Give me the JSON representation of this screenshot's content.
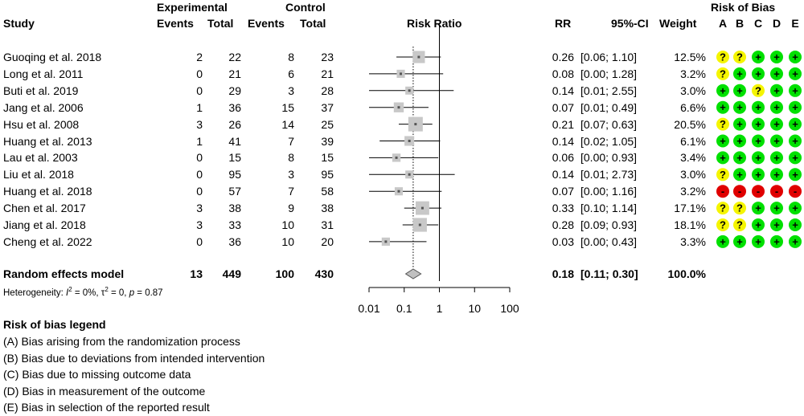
{
  "headers": {
    "experimental": "Experimental",
    "control": "Control",
    "study": "Study",
    "events": "Events",
    "total": "Total",
    "risk_ratio": "Risk Ratio",
    "rr": "RR",
    "ci": "95%-CI",
    "weight": "Weight",
    "risk_of_bias": "Risk of Bias",
    "rob_cols": [
      "A",
      "B",
      "C",
      "D",
      "E"
    ]
  },
  "studies": [
    {
      "study": "Guoqing et al. 2018",
      "exp_events": "2",
      "exp_total": "22",
      "ctrl_events": "8",
      "ctrl_total": "23",
      "rr": "0.26",
      "ci": "[0.06; 1.10]",
      "weight": "12.5%",
      "rob": [
        "?",
        "?",
        "+",
        "+",
        "+"
      ]
    },
    {
      "study": "Long et al. 2011",
      "exp_events": "0",
      "exp_total": "21",
      "ctrl_events": "6",
      "ctrl_total": "21",
      "rr": "0.08",
      "ci": "[0.00; 1.28]",
      "weight": "3.2%",
      "rob": [
        "?",
        "+",
        "+",
        "+",
        "+"
      ]
    },
    {
      "study": "Buti et al. 2019",
      "exp_events": "0",
      "exp_total": "29",
      "ctrl_events": "3",
      "ctrl_total": "28",
      "rr": "0.14",
      "ci": "[0.01; 2.55]",
      "weight": "3.0%",
      "rob": [
        "+",
        "+",
        "?",
        "+",
        "+"
      ]
    },
    {
      "study": "Jang et al. 2006",
      "exp_events": "1",
      "exp_total": "36",
      "ctrl_events": "15",
      "ctrl_total": "37",
      "rr": "0.07",
      "ci": "[0.01; 0.49]",
      "weight": "6.6%",
      "rob": [
        "+",
        "+",
        "+",
        "+",
        "+"
      ]
    },
    {
      "study": "Hsu et al. 2008",
      "exp_events": "3",
      "exp_total": "26",
      "ctrl_events": "14",
      "ctrl_total": "25",
      "rr": "0.21",
      "ci": "[0.07; 0.63]",
      "weight": "20.5%",
      "rob": [
        "?",
        "+",
        "+",
        "+",
        "+"
      ]
    },
    {
      "study": "Huang et al. 2013",
      "exp_events": "1",
      "exp_total": "41",
      "ctrl_events": "7",
      "ctrl_total": "39",
      "rr": "0.14",
      "ci": "[0.02; 1.05]",
      "weight": "6.1%",
      "rob": [
        "+",
        "+",
        "+",
        "+",
        "+"
      ]
    },
    {
      "study": "Lau et al. 2003",
      "exp_events": "0",
      "exp_total": "15",
      "ctrl_events": "8",
      "ctrl_total": "15",
      "rr": "0.06",
      "ci": "[0.00; 0.93]",
      "weight": "3.4%",
      "rob": [
        "+",
        "+",
        "+",
        "+",
        "+"
      ]
    },
    {
      "study": "Liu et al. 2018",
      "exp_events": "0",
      "exp_total": "95",
      "ctrl_events": "3",
      "ctrl_total": "95",
      "rr": "0.14",
      "ci": "[0.01; 2.73]",
      "weight": "3.0%",
      "rob": [
        "?",
        "+",
        "+",
        "+",
        "+"
      ]
    },
    {
      "study": "Huang et al. 2018",
      "exp_events": "0",
      "exp_total": "57",
      "ctrl_events": "7",
      "ctrl_total": "58",
      "rr": "0.07",
      "ci": "[0.00; 1.16]",
      "weight": "3.2%",
      "rob": [
        "-",
        "-",
        "-",
        "-",
        "-"
      ]
    },
    {
      "study": "Chen et al. 2017",
      "exp_events": "3",
      "exp_total": "38",
      "ctrl_events": "9",
      "ctrl_total": "38",
      "rr": "0.33",
      "ci": "[0.10; 1.14]",
      "weight": "17.1%",
      "rob": [
        "?",
        "?",
        "+",
        "+",
        "+"
      ]
    },
    {
      "study": "Jiang et al. 2018",
      "exp_events": "3",
      "exp_total": "33",
      "ctrl_events": "10",
      "ctrl_total": "31",
      "rr": "0.28",
      "ci": "[0.09; 0.93]",
      "weight": "18.1%",
      "rob": [
        "?",
        "?",
        "+",
        "+",
        "+"
      ]
    },
    {
      "study": "Cheng et al. 2022",
      "exp_events": "0",
      "exp_total": "36",
      "ctrl_events": "10",
      "ctrl_total": "20",
      "rr": "0.03",
      "ci": "[0.00; 0.43]",
      "weight": "3.3%",
      "rob": [
        "+",
        "+",
        "+",
        "+",
        "+"
      ]
    }
  ],
  "pooled": {
    "label": "Random effects model",
    "exp_events": "13",
    "exp_total": "449",
    "ctrl_events": "100",
    "ctrl_total": "430",
    "rr": "0.18",
    "ci": "[0.11; 0.30]",
    "weight": "100.0%"
  },
  "heterogeneity": {
    "prefix": "Heterogeneity: ",
    "i_sym": "I",
    "i_sup": "2",
    "i_val": " = 0%, ",
    "tau_sym": "τ",
    "tau_sup": "2",
    "tau_val": " = 0, ",
    "p_sym": "p",
    "p_val": " = 0.87"
  },
  "legend": {
    "title": "Risk of bias legend",
    "items": [
      "(A) Bias arising from the randomization process",
      "(B) Bias due to deviations from intended intervention",
      "(C) Bias due to missing outcome data",
      "(D) Bias in measurement of the outcome",
      "(E) Bias in selection of the reported result"
    ]
  },
  "rob_colors": {
    "+": "#00e000",
    "?": "#f5f500",
    "-": "#e00000"
  },
  "chart_data": {
    "type": "forest",
    "xscale": "log",
    "xlim": [
      0.01,
      100
    ],
    "xticks": [
      0.01,
      0.1,
      1,
      10,
      100
    ],
    "xtick_labels": [
      "0.01",
      "0.1",
      "1",
      "10",
      "100"
    ],
    "null_line": 1,
    "pooled_line": 0.18,
    "points": [
      {
        "rr": 0.26,
        "lo": 0.06,
        "hi": 1.1,
        "weight": 12.5
      },
      {
        "rr": 0.08,
        "lo": 0.0,
        "hi": 1.28,
        "weight": 3.2
      },
      {
        "rr": 0.14,
        "lo": 0.01,
        "hi": 2.55,
        "weight": 3.0
      },
      {
        "rr": 0.07,
        "lo": 0.01,
        "hi": 0.49,
        "weight": 6.6
      },
      {
        "rr": 0.21,
        "lo": 0.07,
        "hi": 0.63,
        "weight": 20.5
      },
      {
        "rr": 0.14,
        "lo": 0.02,
        "hi": 1.05,
        "weight": 6.1
      },
      {
        "rr": 0.06,
        "lo": 0.0,
        "hi": 0.93,
        "weight": 3.4
      },
      {
        "rr": 0.14,
        "lo": 0.01,
        "hi": 2.73,
        "weight": 3.0
      },
      {
        "rr": 0.07,
        "lo": 0.0,
        "hi": 1.16,
        "weight": 3.2
      },
      {
        "rr": 0.33,
        "lo": 0.1,
        "hi": 1.14,
        "weight": 17.1
      },
      {
        "rr": 0.28,
        "lo": 0.09,
        "hi": 0.93,
        "weight": 18.1
      },
      {
        "rr": 0.03,
        "lo": 0.0,
        "hi": 0.43,
        "weight": 3.3
      }
    ],
    "pooled": {
      "rr": 0.18,
      "lo": 0.11,
      "hi": 0.3
    }
  }
}
